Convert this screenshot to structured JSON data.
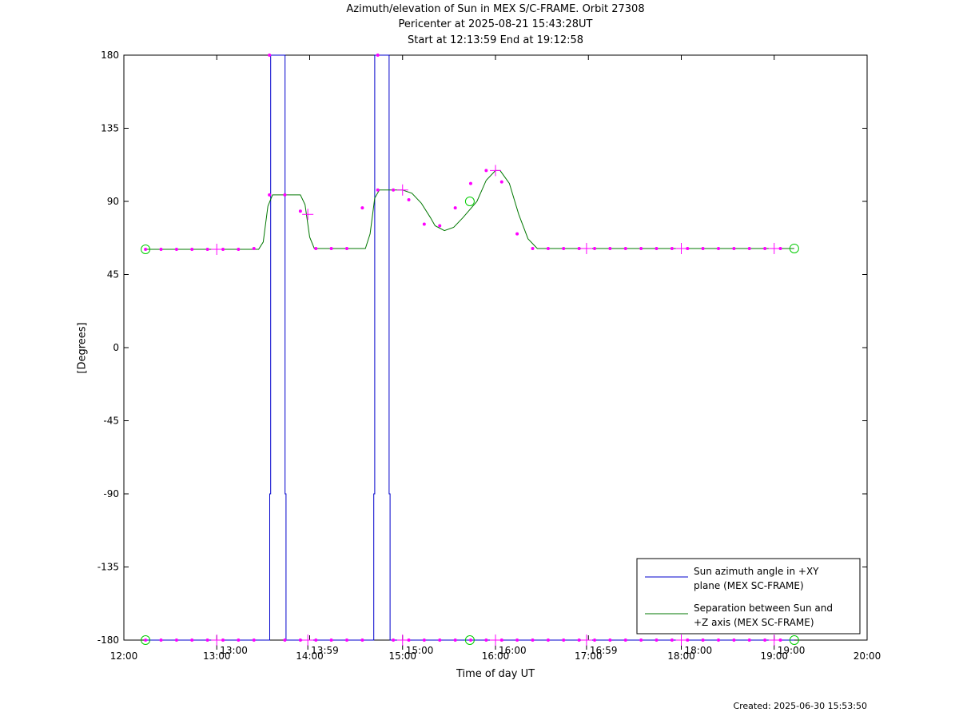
{
  "title": {
    "line1": "Azimuth/elevation of Sun in MEX S/C-FRAME.  Orbit 27308",
    "line2": "Pericenter at 2025-08-21 15:43:28UT",
    "line3": "Start at 12:13:59 End at 19:12:58"
  },
  "created": "Created: 2025-06-30 15:53:50",
  "colors": {
    "azimuth": "#0000cc",
    "separation": "#007700",
    "markers": "#ff00ff",
    "circles": "#00cc00"
  },
  "chart_data": {
    "type": "line",
    "xlabel": "Time of day UT",
    "ylabel": "[Degrees]",
    "xlim": [
      12.0,
      20.0
    ],
    "ylim": [
      -180,
      180
    ],
    "xticks": [
      "12:00",
      "13:00",
      "14:00",
      "15:00",
      "16:00",
      "17:00",
      "18:00",
      "19:00",
      "20:00"
    ],
    "xtick_values": [
      12,
      13,
      14,
      15,
      16,
      17,
      18,
      19,
      20
    ],
    "yticks": [
      180,
      135,
      90,
      45,
      0,
      -45,
      -90,
      -135,
      -180
    ],
    "secondary_ticks": [
      "13:00",
      "13:59",
      "15:00",
      "16:00",
      "16:59",
      "18:00",
      "19:00"
    ],
    "secondary_tick_values": [
      13.0,
      13.98,
      15.0,
      16.0,
      16.98,
      18.0,
      19.0
    ],
    "grid": false,
    "legend_position": "bottom-right",
    "series": [
      {
        "name": "Sun azimuth angle in +XY plane (MEX SC-FRAME)",
        "color": "#0000cc",
        "x": [
          12.233,
          13.57,
          13.57,
          13.58,
          13.58,
          13.735,
          13.735,
          13.745,
          13.745,
          14.69,
          14.69,
          14.7,
          14.7,
          14.855,
          14.855,
          14.865,
          14.865,
          19.216
        ],
        "y": [
          -180,
          -180,
          -90,
          -90,
          180,
          180,
          -90,
          -90,
          -180,
          -180,
          -90,
          -90,
          180,
          180,
          -90,
          -90,
          -180,
          -180
        ]
      },
      {
        "name": "Separation between Sun and +Z axis (MEX SC-FRAME)",
        "color": "#007700",
        "x": [
          12.233,
          13.45,
          13.5,
          13.55,
          13.6,
          13.9,
          13.95,
          14.0,
          14.05,
          14.6,
          14.65,
          14.7,
          14.75,
          15.0,
          15.1,
          15.2,
          15.3,
          15.35,
          15.45,
          15.55,
          15.65,
          15.8,
          15.9,
          16.0,
          16.05,
          16.15,
          16.25,
          16.35,
          16.45,
          16.6,
          19.216
        ],
        "y": [
          60.5,
          60.5,
          65,
          87,
          94,
          94,
          88,
          68,
          61,
          61,
          70,
          92,
          97,
          97,
          95,
          89,
          80,
          75,
          72,
          74,
          80,
          90,
          103,
          109,
          109,
          101,
          82,
          67,
          61,
          61,
          61
        ]
      }
    ],
    "marker_series": [
      {
        "name": "",
        "x": [
          12.233,
          12.4,
          12.567,
          12.733,
          12.9,
          13.067,
          13.233,
          13.4,
          13.567,
          13.733,
          13.9,
          14.067,
          14.233,
          14.4,
          14.567,
          14.733,
          14.9,
          15.067,
          15.233,
          15.4,
          15.567,
          15.733,
          15.9,
          16.067,
          16.233,
          16.4,
          16.567,
          16.733,
          16.9,
          17.067,
          17.233,
          17.4,
          17.567,
          17.733,
          17.9,
          18.067,
          18.233,
          18.4,
          18.567,
          18.733,
          18.9,
          19.067
        ],
        "y": [
          60.5,
          60.5,
          60.5,
          60.5,
          60.5,
          60.5,
          60.5,
          61,
          94,
          94,
          84,
          61,
          61,
          61,
          86,
          97,
          97,
          91,
          76,
          75,
          86,
          101,
          109,
          102,
          70,
          61,
          61,
          61,
          61,
          61,
          61,
          61,
          61,
          61,
          61,
          61,
          61,
          61,
          61,
          61,
          61,
          61
        ]
      },
      {
        "name": "",
        "x": [
          12.233,
          12.4,
          12.567,
          12.733,
          12.9,
          13.067,
          13.233,
          13.4,
          13.567,
          13.733,
          13.9,
          14.067,
          14.233,
          14.4,
          14.567,
          14.733,
          14.9,
          15.067,
          15.233,
          15.4,
          15.567,
          15.733,
          15.9,
          16.067,
          16.233,
          16.4,
          16.567,
          16.733,
          16.9,
          17.067,
          17.233,
          17.4,
          17.567,
          17.733,
          17.9,
          18.067,
          18.233,
          18.4,
          18.567,
          18.733,
          18.9,
          19.067
        ],
        "y": [
          -180,
          -180,
          -180,
          -180,
          -180,
          -180,
          -180,
          -180,
          180,
          -180,
          -180,
          -180,
          -180,
          -180,
          -180,
          180,
          -180,
          -180,
          -180,
          -180,
          -180,
          -180,
          -180,
          -180,
          -180,
          -180,
          -180,
          -180,
          -180,
          -180,
          -180,
          -180,
          -180,
          -180,
          -180,
          -180,
          -180,
          -180,
          -180,
          -180,
          -180,
          -180
        ]
      }
    ],
    "circle_markers": [
      {
        "x": 12.233,
        "y": 60.5
      },
      {
        "x": 12.233,
        "y": -180
      },
      {
        "x": 15.724,
        "y": 90
      },
      {
        "x": 15.724,
        "y": -180
      },
      {
        "x": 19.216,
        "y": 61
      },
      {
        "x": 19.216,
        "y": -180
      }
    ],
    "cross_markers": [
      {
        "x": 13.0,
        "y": 60.5
      },
      {
        "x": 13.0,
        "y": -180
      },
      {
        "x": 13.98,
        "y": 82
      },
      {
        "x": 13.98,
        "y": -180
      },
      {
        "x": 15.0,
        "y": 97
      },
      {
        "x": 15.0,
        "y": -180
      },
      {
        "x": 16.0,
        "y": 109
      },
      {
        "x": 16.0,
        "y": -180
      },
      {
        "x": 16.98,
        "y": 61
      },
      {
        "x": 16.98,
        "y": -180
      },
      {
        "x": 18.0,
        "y": 61
      },
      {
        "x": 18.0,
        "y": -180
      },
      {
        "x": 19.0,
        "y": 61
      },
      {
        "x": 19.0,
        "y": -180
      }
    ]
  }
}
